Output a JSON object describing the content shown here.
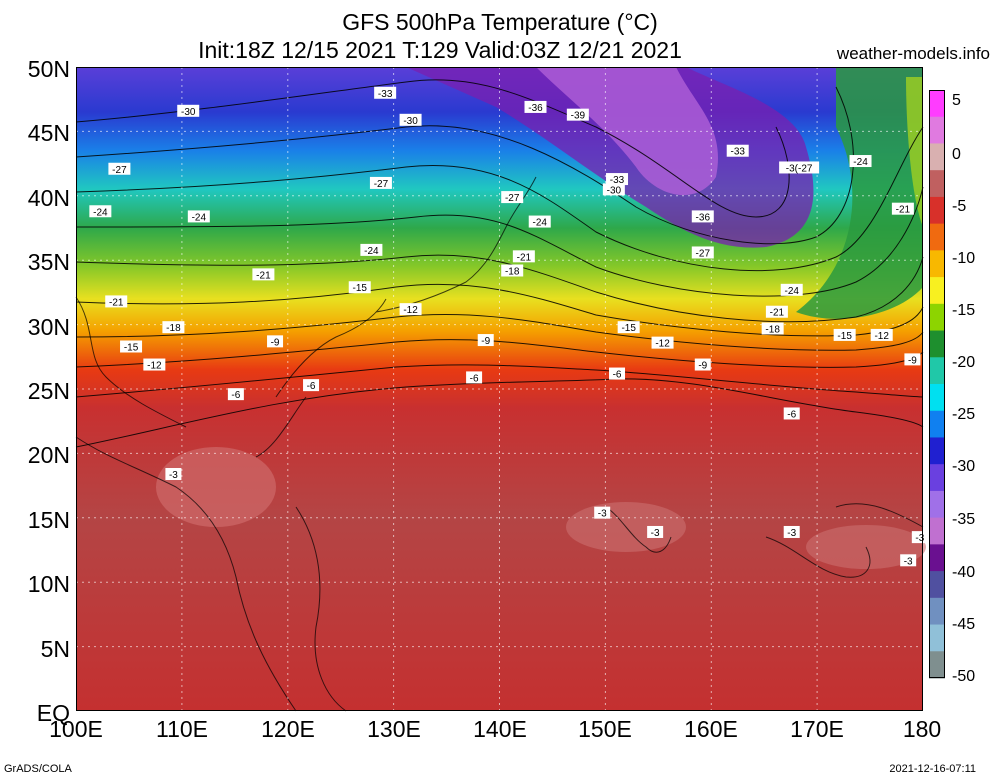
{
  "header": {
    "title": "GFS 500hPa Temperature (°C)",
    "subtitle": "Init:18Z 12/15 2021 T:129 Valid:03Z 12/21 2021",
    "site": "weather-models.info"
  },
  "axes": {
    "lat_labels": [
      "50N",
      "45N",
      "40N",
      "35N",
      "30N",
      "25N",
      "20N",
      "15N",
      "10N",
      "5N",
      "EQ"
    ],
    "lon_labels": [
      "100E",
      "110E",
      "120E",
      "130E",
      "140E",
      "150E",
      "160E",
      "170E",
      "180"
    ]
  },
  "colorbar": {
    "labels": [
      "5",
      "0",
      "-5",
      "-10",
      "-15",
      "-20",
      "-25",
      "-30",
      "-35",
      "-40",
      "-45",
      "-50"
    ],
    "colors": [
      "#ff3cff",
      "#e07ae0",
      "#d9b0b0",
      "#c06060",
      "#d8302a",
      "#f06a10",
      "#f8b800",
      "#f8f020",
      "#8dd400",
      "#1e8f2e",
      "#20c8a8",
      "#00e0f0",
      "#1080f0",
      "#2020d0",
      "#6a40e0",
      "#a070e8",
      "#c070d0",
      "#6a1090",
      "#5050a0",
      "#7090c0",
      "#90c0d8",
      "#7f8f8f"
    ]
  },
  "contour_labels": [
    {
      "text": "-30",
      "lon": 110.6,
      "lat": 46.6
    },
    {
      "text": "-33",
      "lon": 129.2,
      "lat": 48.0
    },
    {
      "text": "-36",
      "lon": 143.4,
      "lat": 46.9
    },
    {
      "text": "-39",
      "lon": 147.4,
      "lat": 46.3
    },
    {
      "text": "-30",
      "lon": 131.6,
      "lat": 45.9
    },
    {
      "text": "-27",
      "lon": 104.1,
      "lat": 42.1
    },
    {
      "text": "-27",
      "lon": 128.8,
      "lat": 41.0
    },
    {
      "text": "-33",
      "lon": 162.5,
      "lat": 43.5
    },
    {
      "text": "-3(-27",
      "lon": 168.3,
      "lat": 42.2
    },
    {
      "text": "-24",
      "lon": 174.1,
      "lat": 42.7
    },
    {
      "text": "-33",
      "lon": 151.1,
      "lat": 41.3
    },
    {
      "text": "-30",
      "lon": 150.8,
      "lat": 40.5
    },
    {
      "text": "-27",
      "lon": 141.2,
      "lat": 39.9
    },
    {
      "text": "-24",
      "lon": 102.3,
      "lat": 38.8
    },
    {
      "text": "-24",
      "lon": 111.6,
      "lat": 38.4
    },
    {
      "text": "-24",
      "lon": 143.8,
      "lat": 38.0
    },
    {
      "text": "-36",
      "lon": 159.2,
      "lat": 38.4
    },
    {
      "text": "-21",
      "lon": 178.1,
      "lat": 39.0
    },
    {
      "text": "-24",
      "lon": 127.9,
      "lat": 35.8
    },
    {
      "text": "-21",
      "lon": 142.3,
      "lat": 35.3
    },
    {
      "text": "-27",
      "lon": 159.2,
      "lat": 35.6
    },
    {
      "text": "-18",
      "lon": 141.2,
      "lat": 34.2
    },
    {
      "text": "-21",
      "lon": 117.7,
      "lat": 33.9
    },
    {
      "text": "-15",
      "lon": 126.8,
      "lat": 32.9
    },
    {
      "text": "-24",
      "lon": 167.6,
      "lat": 32.7
    },
    {
      "text": "-21",
      "lon": 103.8,
      "lat": 31.8
    },
    {
      "text": "-12",
      "lon": 131.6,
      "lat": 31.2
    },
    {
      "text": "-21",
      "lon": 166.2,
      "lat": 31.0
    },
    {
      "text": "-18",
      "lon": 109.2,
      "lat": 29.8
    },
    {
      "text": "-15",
      "lon": 152.2,
      "lat": 29.8
    },
    {
      "text": "-18",
      "lon": 165.8,
      "lat": 29.7
    },
    {
      "text": "-15",
      "lon": 172.6,
      "lat": 29.2
    },
    {
      "text": "-12",
      "lon": 176.1,
      "lat": 29.2
    },
    {
      "text": "-15",
      "lon": 105.2,
      "lat": 28.3
    },
    {
      "text": "-9",
      "lon": 118.8,
      "lat": 28.7
    },
    {
      "text": "-9",
      "lon": 138.7,
      "lat": 28.8
    },
    {
      "text": "-12",
      "lon": 155.4,
      "lat": 28.6
    },
    {
      "text": "-12",
      "lon": 107.4,
      "lat": 26.9
    },
    {
      "text": "-9",
      "lon": 159.2,
      "lat": 26.9
    },
    {
      "text": "-9",
      "lon": 179.0,
      "lat": 27.3
    },
    {
      "text": "-6",
      "lon": 137.6,
      "lat": 25.9
    },
    {
      "text": "-6",
      "lon": 151.1,
      "lat": 26.2
    },
    {
      "text": "-6",
      "lon": 122.2,
      "lat": 25.3
    },
    {
      "text": "-6",
      "lon": 115.1,
      "lat": 24.6
    },
    {
      "text": "-6",
      "lon": 167.6,
      "lat": 23.1
    },
    {
      "text": "-3",
      "lon": 109.2,
      "lat": 18.4
    },
    {
      "text": "-3",
      "lon": 149.7,
      "lat": 15.4
    },
    {
      "text": "-3",
      "lon": 154.7,
      "lat": 13.9
    },
    {
      "text": "-3",
      "lon": 167.6,
      "lat": 13.9
    },
    {
      "text": "-3",
      "lon": 179.7,
      "lat": 13.5
    },
    {
      "text": "-3",
      "lon": 178.6,
      "lat": 11.7
    }
  ],
  "footer": {
    "left": "GrADS/COLA",
    "right": "2021-12-16-07:11"
  }
}
